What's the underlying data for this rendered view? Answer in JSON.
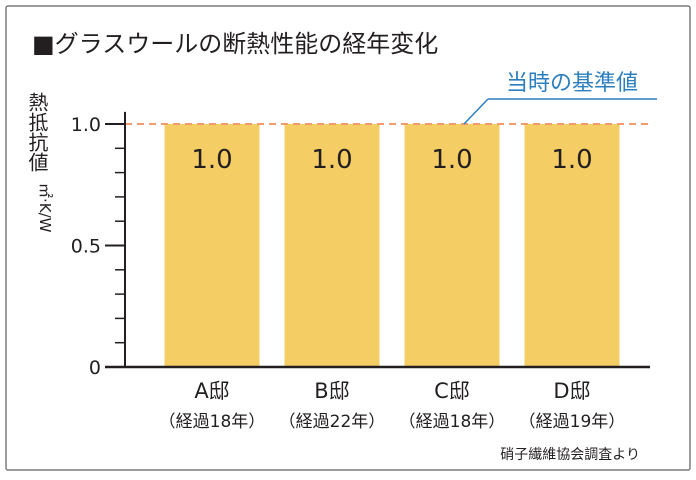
{
  "title": "■グラスウールの断熱性能の経年変化",
  "source": "硝子繊維協会調査より",
  "colors": {
    "bar": "#f4cd64",
    "reference_line": "#f09c6e",
    "reference_label": "#2b7fbf",
    "axis": "#231f20",
    "border": "#7a7a7a"
  },
  "chart_data": {
    "type": "bar",
    "title": "■グラスウールの断熱性能の経年変化",
    "ylabel_main": "熱抵抗値",
    "ylabel_unit": "㎡·K/W",
    "ylim": [
      0,
      1.05
    ],
    "yticks": [
      {
        "value": 0,
        "label": "0"
      },
      {
        "value": 0.5,
        "label": "0.5"
      },
      {
        "value": 1.0,
        "label": "1.0"
      }
    ],
    "categories": [
      {
        "name": "A邸",
        "sub": "（経過18年）"
      },
      {
        "name": "B邸",
        "sub": "（経過22年）"
      },
      {
        "name": "C邸",
        "sub": "（経過18年）"
      },
      {
        "name": "D邸",
        "sub": "（経過19年）"
      }
    ],
    "values": [
      1.0,
      1.0,
      1.0,
      1.0
    ],
    "value_labels": [
      "1.0",
      "1.0",
      "1.0",
      "1.0"
    ],
    "reference": {
      "value": 1.0,
      "label": "当時の基準値"
    },
    "grid": false,
    "legend": "none"
  }
}
